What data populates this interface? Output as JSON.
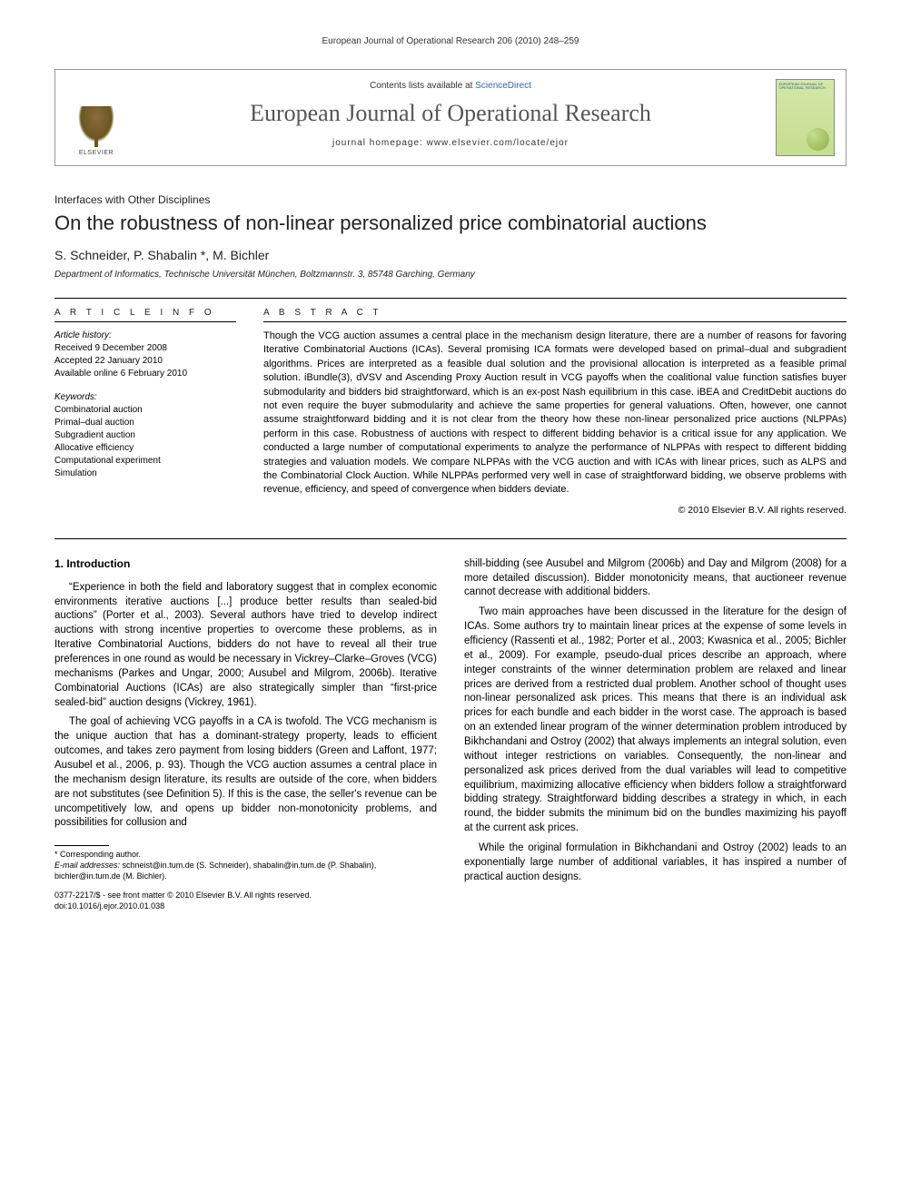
{
  "running_head": "European Journal of Operational Research 206 (2010) 248–259",
  "masthead": {
    "contents_prefix": "Contents lists available at ",
    "contents_link": "ScienceDirect",
    "journal_name": "European Journal of Operational Research",
    "homepage_label": "journal homepage: www.elsevier.com/locate/ejor",
    "publisher": "ELSEVIER",
    "cover_title": "EUROPEAN JOURNAL OF OPERATIONAL RESEARCH"
  },
  "section_label": "Interfaces with Other Disciplines",
  "title": "On the robustness of non-linear personalized price combinatorial auctions",
  "authors": "S. Schneider, P. Shabalin *, M. Bichler",
  "affiliation": "Department of Informatics, Technische Universität München, Boltzmannstr. 3, 85748 Garching, Germany",
  "article_info": {
    "heading": "A R T I C L E   I N F O",
    "history_label": "Article history:",
    "history": [
      "Received 9 December 2008",
      "Accepted 22 January 2010",
      "Available online 6 February 2010"
    ],
    "keywords_label": "Keywords:",
    "keywords": [
      "Combinatorial auction",
      "Primal–dual auction",
      "Subgradient auction",
      "Allocative efficiency",
      "Computational experiment",
      "Simulation"
    ]
  },
  "abstract": {
    "heading": "A B S T R A C T",
    "text": "Though the VCG auction assumes a central place in the mechanism design literature, there are a number of reasons for favoring Iterative Combinatorial Auctions (ICAs). Several promising ICA formats were developed based on primal–dual and subgradient algorithms. Prices are interpreted as a feasible dual solution and the provisional allocation is interpreted as a feasible primal solution. iBundle(3), dVSV and Ascending Proxy Auction result in VCG payoffs when the coalitional value function satisfies buyer submodularity and bidders bid straightforward, which is an ex-post Nash equilibrium in this case. iBEA and CreditDebit auctions do not even require the buyer submodularity and achieve the same properties for general valuations. Often, however, one cannot assume straightforward bidding and it is not clear from the theory how these non-linear personalized price auctions (NLPPAs) perform in this case. Robustness of auctions with respect to different bidding behavior is a critical issue for any application. We conducted a large number of computational experiments to analyze the performance of NLPPAs with respect to different bidding strategies and valuation models. We compare NLPPAs with the VCG auction and with ICAs with linear prices, such as ALPS and the Combinatorial Clock Auction. While NLPPAs performed very well in case of straightforward bidding, we observe problems with revenue, efficiency, and speed of convergence when bidders deviate.",
    "copyright": "© 2010 Elsevier B.V. All rights reserved."
  },
  "body": {
    "section_number": "1. Introduction",
    "left_paragraphs": [
      "“Experience in both the field and laboratory suggest that in complex economic environments iterative auctions [...] produce better results than sealed-bid auctions” (Porter et al., 2003). Several authors have tried to develop indirect auctions with strong incentive properties to overcome these problems, as in Iterative Combinatorial Auctions, bidders do not have to reveal all their true preferences in one round as would be necessary in Vickrey–Clarke–Groves (VCG) mechanisms (Parkes and Ungar, 2000; Ausubel and Milgrom, 2006b). Iterative Combinatorial Auctions (ICAs) are also strategically simpler than “first-price sealed-bid” auction designs (Vickrey, 1961).",
      "The goal of achieving VCG payoffs in a CA is twofold. The VCG mechanism is the unique auction that has a dominant-strategy property, leads to efficient outcomes, and takes zero payment from losing bidders (Green and Laffont, 1977; Ausubel et al., 2006, p. 93). Though the VCG auction assumes a central place in the mechanism design literature, its results are outside of the core, when bidders are not substitutes (see Definition 5). If this is the case, the seller's revenue can be uncompetitively low, and opens up bidder non-monotonicity problems, and possibilities for collusion and"
    ],
    "right_paragraphs": [
      "shill-bidding (see Ausubel and Milgrom (2006b) and Day and Milgrom (2008) for a more detailed discussion). Bidder monotonicity means, that auctioneer revenue cannot decrease with additional bidders.",
      "Two main approaches have been discussed in the literature for the design of ICAs. Some authors try to maintain linear prices at the expense of some levels in efficiency (Rassenti et al., 1982; Porter et al., 2003; Kwasnica et al., 2005; Bichler et al., 2009). For example, pseudo-dual prices describe an approach, where integer constraints of the winner determination problem are relaxed and linear prices are derived from a restricted dual problem. Another school of thought uses non-linear personalized ask prices. This means that there is an individual ask prices for each bundle and each bidder in the worst case. The approach is based on an extended linear program of the winner determination problem introduced by Bikhchandani and Ostroy (2002) that always implements an integral solution, even without integer restrictions on variables. Consequently, the non-linear and personalized ask prices derived from the dual variables will lead to competitive equilibrium, maximizing allocative efficiency when bidders follow a straightforward bidding strategy. Straightforward bidding describes a strategy in which, in each round, the bidder submits the minimum bid on the bundles maximizing his payoff at the current ask prices.",
      "While the original formulation in Bikhchandani and Ostroy (2002) leads to an exponentially large number of additional variables, it has inspired a number of practical auction designs."
    ]
  },
  "footnotes": {
    "corresponding": "* Corresponding author.",
    "email_label": "E-mail addresses:",
    "emails": " schneist@in.tum.de (S. Schneider), shabalin@in.tum.de (P. Shabalin), bichler@in.tum.de (M. Bichler)."
  },
  "footer": {
    "line1": "0377-2217/$ - see front matter © 2010 Elsevier B.V. All rights reserved.",
    "line2": "doi:10.1016/j.ejor.2010.01.038"
  },
  "colors": {
    "link": "#2a5d8a",
    "text": "#000000",
    "journal_title": "#555555"
  }
}
